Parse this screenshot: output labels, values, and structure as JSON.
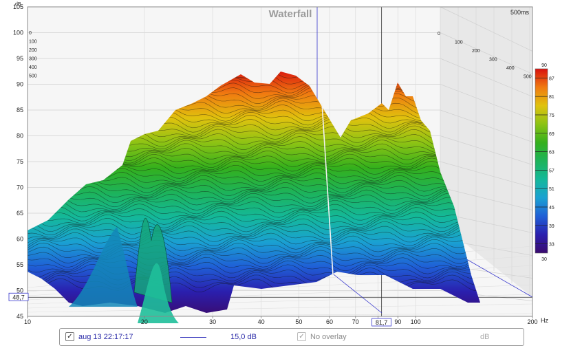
{
  "chart_data": {
    "type": "waterfall",
    "title": "Waterfall",
    "ylabel": "dB",
    "xunit": "Hz",
    "xlim": [
      10,
      200
    ],
    "ylim": [
      45,
      105
    ],
    "y_ticks": [
      "45",
      "50",
      "55",
      "60",
      "65",
      "70",
      "75",
      "80",
      "85",
      "90",
      "95",
      "100",
      "105"
    ],
    "x_ticks": [
      "10",
      "20",
      "30",
      "40",
      "50",
      "60",
      "70",
      "80",
      "90",
      "100",
      "200"
    ],
    "log_x": true,
    "time_labels_left": [
      "0",
      "100",
      "200",
      "300",
      "400",
      "500"
    ],
    "time_labels_right": [
      "0",
      "100",
      "200",
      "300",
      "400",
      "500"
    ],
    "time_end_label": "500ms",
    "cursor_y_value": "48,7",
    "cursor_x_value": "81,7",
    "colorbar": {
      "min_label": "30",
      "max_label": "90",
      "ticks": [
        "87",
        "81",
        "75",
        "69",
        "63",
        "57",
        "51",
        "45",
        "39",
        "33"
      ]
    },
    "peak_level_db": 90,
    "time_slices": 60
  },
  "legend": {
    "checked_mark": "✓",
    "series_name": "aug 13 22:17:17",
    "series_color": "#2b2bb8",
    "series_value": "15,0 dB",
    "overlay_label": "No overlay",
    "unit_label": "dB"
  }
}
